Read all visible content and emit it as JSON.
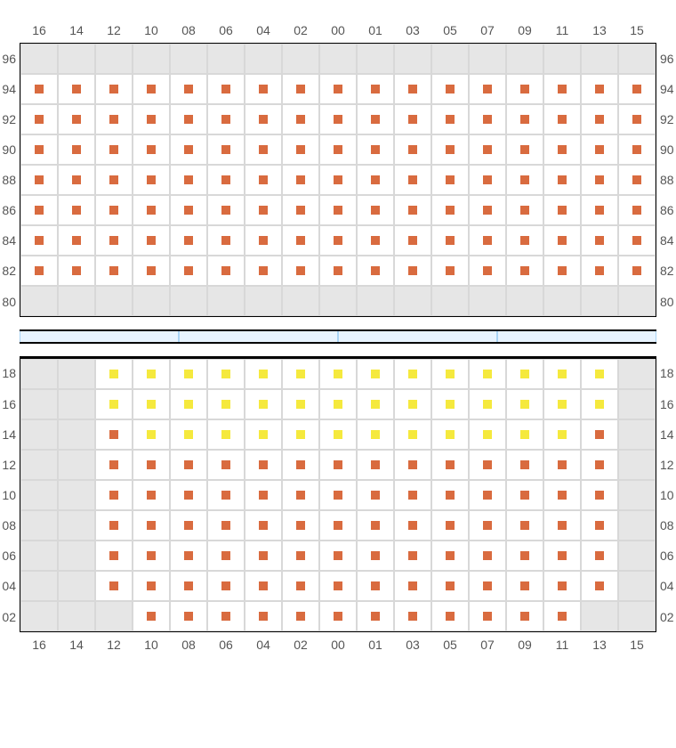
{
  "columns": [
    "16",
    "14",
    "12",
    "10",
    "08",
    "06",
    "04",
    "02",
    "00",
    "01",
    "03",
    "05",
    "07",
    "09",
    "11",
    "13",
    "15"
  ],
  "columnsBottom": [
    "16",
    "14",
    "12",
    "10",
    "08",
    "06",
    "04",
    "02",
    "00",
    "01",
    "03",
    "05",
    "07",
    "09",
    "11",
    "13",
    "15"
  ],
  "topRows": [
    "96",
    "94",
    "92",
    "90",
    "88",
    "86",
    "84",
    "82",
    "80"
  ],
  "bottomRows": [
    "18",
    "16",
    "14",
    "12",
    "10",
    "08",
    "06",
    "04",
    "02"
  ],
  "colors": {
    "orange": "#d96b3f",
    "yellow": "#f5e93d",
    "disabled": "#e6e6e6",
    "cellBg": "#ffffff",
    "cellBorder": "#d8d8d8",
    "gridBorder": "#000000",
    "dividerBg": "#e8f4ff",
    "dividerBorder": "#aad4f5",
    "label": "#555555"
  },
  "dividerSegments": 4,
  "topGrid": [
    [
      "d",
      "d",
      "d",
      "d",
      "d",
      "d",
      "d",
      "d",
      "d",
      "d",
      "d",
      "d",
      "d",
      "d",
      "d",
      "d",
      "d"
    ],
    [
      "o",
      "o",
      "o",
      "o",
      "o",
      "o",
      "o",
      "o",
      "o",
      "o",
      "o",
      "o",
      "o",
      "o",
      "o",
      "o",
      "o"
    ],
    [
      "o",
      "o",
      "o",
      "o",
      "o",
      "o",
      "o",
      "o",
      "o",
      "o",
      "o",
      "o",
      "o",
      "o",
      "o",
      "o",
      "o"
    ],
    [
      "o",
      "o",
      "o",
      "o",
      "o",
      "o",
      "o",
      "o",
      "o",
      "o",
      "o",
      "o",
      "o",
      "o",
      "o",
      "o",
      "o"
    ],
    [
      "o",
      "o",
      "o",
      "o",
      "o",
      "o",
      "o",
      "o",
      "o",
      "o",
      "o",
      "o",
      "o",
      "o",
      "o",
      "o",
      "o"
    ],
    [
      "o",
      "o",
      "o",
      "o",
      "o",
      "o",
      "o",
      "o",
      "o",
      "o",
      "o",
      "o",
      "o",
      "o",
      "o",
      "o",
      "o"
    ],
    [
      "o",
      "o",
      "o",
      "o",
      "o",
      "o",
      "o",
      "o",
      "o",
      "o",
      "o",
      "o",
      "o",
      "o",
      "o",
      "o",
      "o"
    ],
    [
      "o",
      "o",
      "o",
      "o",
      "o",
      "o",
      "o",
      "o",
      "o",
      "o",
      "o",
      "o",
      "o",
      "o",
      "o",
      "o",
      "o"
    ],
    [
      "d",
      "d",
      "d",
      "d",
      "d",
      "d",
      "d",
      "d",
      "d",
      "d",
      "d",
      "d",
      "d",
      "d",
      "d",
      "d",
      "d"
    ]
  ],
  "bottomGrid": [
    [
      "d",
      "d",
      "y",
      "y",
      "y",
      "y",
      "y",
      "y",
      "y",
      "y",
      "y",
      "y",
      "y",
      "y",
      "y",
      "y",
      "d"
    ],
    [
      "d",
      "d",
      "y",
      "y",
      "y",
      "y",
      "y",
      "y",
      "y",
      "y",
      "y",
      "y",
      "y",
      "y",
      "y",
      "y",
      "d"
    ],
    [
      "d",
      "d",
      "o",
      "y",
      "y",
      "y",
      "y",
      "y",
      "y",
      "y",
      "y",
      "y",
      "y",
      "y",
      "y",
      "o",
      "d"
    ],
    [
      "d",
      "d",
      "o",
      "o",
      "o",
      "o",
      "o",
      "o",
      "o",
      "o",
      "o",
      "o",
      "o",
      "o",
      "o",
      "o",
      "d"
    ],
    [
      "d",
      "d",
      "o",
      "o",
      "o",
      "o",
      "o",
      "o",
      "o",
      "o",
      "o",
      "o",
      "o",
      "o",
      "o",
      "o",
      "d"
    ],
    [
      "d",
      "d",
      "o",
      "o",
      "o",
      "o",
      "o",
      "o",
      "o",
      "o",
      "o",
      "o",
      "o",
      "o",
      "o",
      "o",
      "d"
    ],
    [
      "d",
      "d",
      "o",
      "o",
      "o",
      "o",
      "o",
      "o",
      "o",
      "o",
      "o",
      "o",
      "o",
      "o",
      "o",
      "o",
      "d"
    ],
    [
      "d",
      "d",
      "o",
      "o",
      "o",
      "o",
      "o",
      "o",
      "o",
      "o",
      "o",
      "o",
      "o",
      "o",
      "o",
      "o",
      "d"
    ],
    [
      "d",
      "d",
      "d",
      "o",
      "o",
      "o",
      "o",
      "o",
      "o",
      "o",
      "o",
      "o",
      "o",
      "o",
      "o",
      "d",
      "d"
    ]
  ]
}
